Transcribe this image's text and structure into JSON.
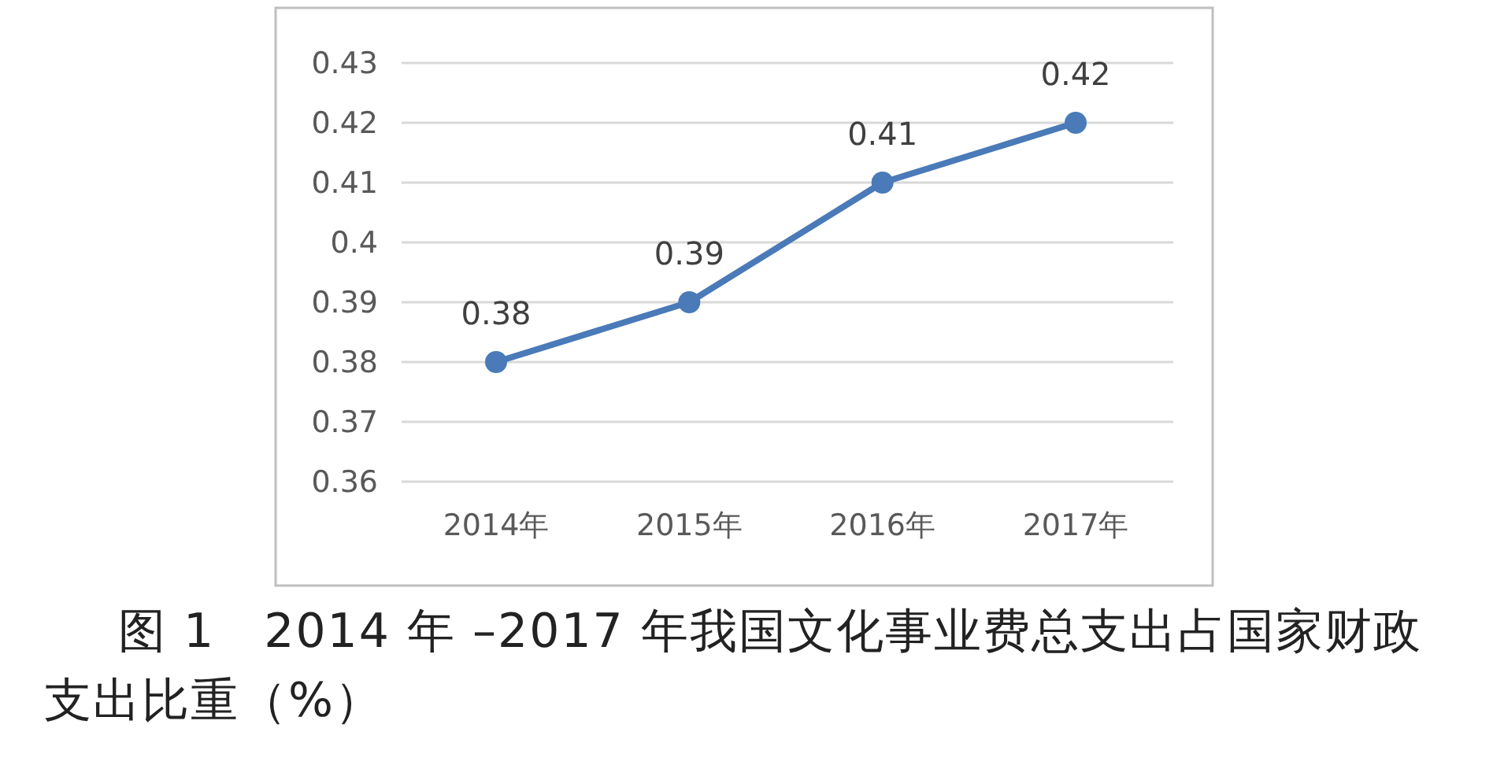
{
  "chart_data": {
    "type": "line",
    "categories": [
      "2014年",
      "2015年",
      "2016年",
      "2017年"
    ],
    "series": [
      {
        "color": "#4a7ab8",
        "values": [
          0.38,
          0.39,
          0.41,
          0.42
        ]
      }
    ],
    "ylim": [
      0.36,
      0.43
    ],
    "yticks": [
      0.36,
      0.37,
      0.38,
      0.39,
      0.4,
      0.41,
      0.42,
      0.43
    ],
    "grid": "y",
    "marker": "circle",
    "line_style": "solid",
    "data_labels": true,
    "annotations": [
      "图 1　2014 年 –2017 年我国文化事业费总支出占国家财政支出比重（%）"
    ]
  }
}
